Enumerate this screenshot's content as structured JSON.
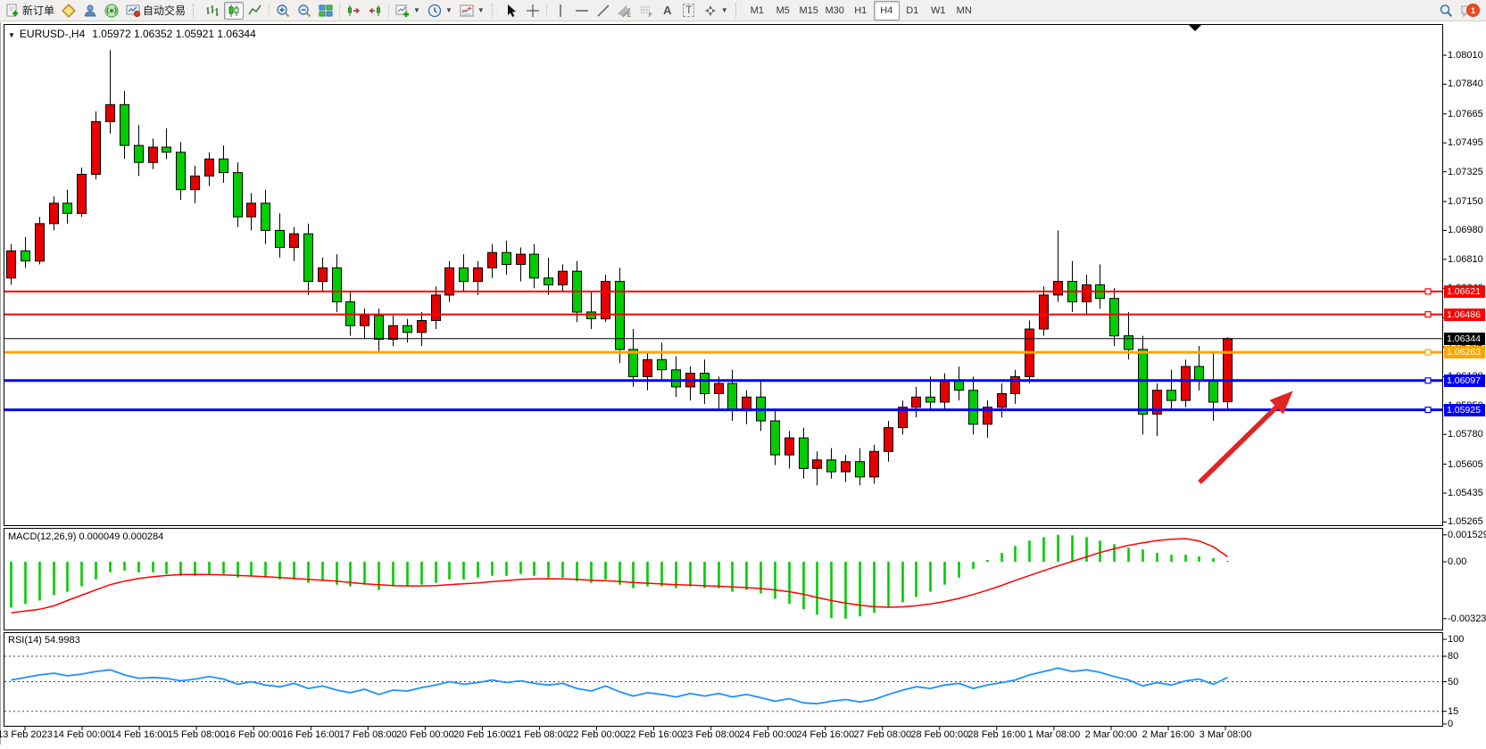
{
  "toolbar": {
    "new_order": {
      "label": "新订单"
    },
    "autotrading": {
      "label": "自动交易"
    },
    "timeframe_labels": [
      "M1",
      "M5",
      "M15",
      "M30",
      "H1",
      "H4",
      "D1",
      "W1",
      "MN"
    ],
    "active_timeframe": "H4",
    "notification_badge": "1"
  },
  "chart": {
    "symbol_title": "EURUSD-,H4",
    "ohlc_text": "1.05972 1.06352 1.05921 1.06344",
    "price_ticks": [
      "1.08010",
      "1.07840",
      "1.07665",
      "1.07495",
      "1.07325",
      "1.07150",
      "1.06980",
      "1.06810",
      "1.06640",
      "1.06465",
      "1.06295",
      "1.06120",
      "1.05950",
      "1.05780",
      "1.05605",
      "1.05435",
      "1.05265"
    ],
    "lines": [
      {
        "label": "1.06621",
        "value": 1.06621,
        "color": "#FF0000"
      },
      {
        "label": "1.06486",
        "value": 1.06486,
        "color": "#FF0000"
      },
      {
        "label": "1.06344",
        "value": 1.06344,
        "color": "#000000"
      },
      {
        "label": "1.06263",
        "value": 1.06263,
        "color": "#FFA500"
      },
      {
        "label": "1.06097",
        "value": 1.06097,
        "color": "#0000FF"
      },
      {
        "label": "1.05925",
        "value": 1.05925,
        "color": "#0000FF"
      }
    ],
    "time_labels": [
      "13 Feb 2023",
      "14 Feb 00:00",
      "14 Feb 16:00",
      "15 Feb 08:00",
      "16 Feb 00:00",
      "16 Feb 16:00",
      "17 Feb 08:00",
      "20 Feb 00:00",
      "20 Feb 16:00",
      "21 Feb 08:00",
      "22 Feb 00:00",
      "22 Feb 16:00",
      "23 Feb 08:00",
      "24 Feb 00:00",
      "24 Feb 16:00",
      "27 Feb 08:00",
      "28 Feb 00:00",
      "28 Feb 16:00",
      "1 Mar 08:00",
      "2 Mar 00:00",
      "2 Mar 16:00",
      "3 Mar 08:00"
    ]
  },
  "chart_data": {
    "type": "candlestick",
    "symbol": "EURUSD-",
    "timeframe": "H4",
    "bull_color": "#E60000",
    "bear_color": "#00CC00",
    "open": [
      1.067,
      1.0686,
      1.068,
      1.0702,
      1.0714,
      1.0708,
      1.0731,
      1.0762,
      1.0772,
      1.0748,
      1.0738,
      1.0747,
      1.0744,
      1.0722,
      1.073,
      1.074,
      1.0732,
      1.0706,
      1.0714,
      1.0698,
      1.0688,
      1.0696,
      1.0668,
      1.0676,
      1.0656,
      1.0642,
      1.0648,
      1.0634,
      1.0642,
      1.0638,
      1.0645,
      1.066,
      1.0676,
      1.0668,
      1.0676,
      1.0685,
      1.0678,
      1.0684,
      1.067,
      1.0666,
      1.0674,
      1.065,
      1.0646,
      1.0668,
      1.0628,
      1.0612,
      1.0622,
      1.0616,
      1.0606,
      1.0614,
      1.0602,
      1.0608,
      1.0592,
      1.06,
      1.0586,
      1.0566,
      1.0576,
      1.0558,
      1.0563,
      1.0556,
      1.0562,
      1.0553,
      1.0568,
      1.0582,
      1.0594,
      1.06,
      1.0597,
      1.061,
      1.0604,
      1.0584,
      1.0594,
      1.0602,
      1.0612,
      1.064,
      1.066,
      1.0668,
      1.0656,
      1.0666,
      1.0658,
      1.0636,
      1.0628,
      1.059,
      1.0604,
      1.0598,
      1.0618,
      1.061,
      1.05972
    ],
    "high": [
      1.069,
      1.0694,
      1.0706,
      1.0718,
      1.0722,
      1.0735,
      1.0768,
      1.0804,
      1.078,
      1.076,
      1.0752,
      1.0758,
      1.075,
      1.0736,
      1.0744,
      1.0748,
      1.0738,
      1.072,
      1.0722,
      1.0708,
      1.07,
      1.0702,
      1.0682,
      1.0684,
      1.0662,
      1.0652,
      1.0652,
      1.0648,
      1.0646,
      1.065,
      1.0665,
      1.068,
      1.0684,
      1.068,
      1.069,
      1.0692,
      1.0688,
      1.069,
      1.0682,
      1.0678,
      1.068,
      1.0662,
      1.0672,
      1.0676,
      1.064,
      1.0626,
      1.0632,
      1.0624,
      1.0618,
      1.0622,
      1.0612,
      1.0616,
      1.0604,
      1.061,
      1.0592,
      1.058,
      1.0582,
      1.0568,
      1.057,
      1.0566,
      1.057,
      1.0572,
      1.0586,
      1.0598,
      1.0606,
      1.0612,
      1.0614,
      1.0618,
      1.0612,
      1.0598,
      1.0608,
      1.0616,
      1.0645,
      1.0665,
      1.0698,
      1.068,
      1.0672,
      1.0678,
      1.0664,
      1.065,
      1.0636,
      1.0608,
      1.0616,
      1.0622,
      1.063,
      1.0626,
      1.06352
    ],
    "low": [
      1.0666,
      1.0676,
      1.0678,
      1.0698,
      1.0702,
      1.0706,
      1.0728,
      1.0755,
      1.074,
      1.073,
      1.0734,
      1.074,
      1.0716,
      1.0714,
      1.0724,
      1.0726,
      1.07,
      1.0698,
      1.069,
      1.0682,
      1.068,
      1.066,
      1.0662,
      1.065,
      1.0636,
      1.0634,
      1.0627,
      1.063,
      1.0632,
      1.063,
      1.064,
      1.0656,
      1.0662,
      1.066,
      1.067,
      1.0672,
      1.0668,
      1.0664,
      1.066,
      1.0662,
      1.0644,
      1.064,
      1.0644,
      1.062,
      1.0606,
      1.0604,
      1.061,
      1.06,
      1.0598,
      1.0596,
      1.0592,
      1.0586,
      1.0584,
      1.058,
      1.056,
      1.0558,
      1.0552,
      1.0548,
      1.0552,
      1.055,
      1.0548,
      1.0549,
      1.0562,
      1.0578,
      1.0588,
      1.0592,
      1.0592,
      1.0598,
      1.0578,
      1.0576,
      1.0588,
      1.0596,
      1.0608,
      1.0636,
      1.0656,
      1.065,
      1.0648,
      1.0652,
      1.063,
      1.0622,
      1.0578,
      1.0577,
      1.0592,
      1.0594,
      1.0604,
      1.0586,
      1.05921
    ],
    "close": [
      1.0686,
      1.068,
      1.0702,
      1.0714,
      1.0708,
      1.0731,
      1.0762,
      1.0772,
      1.0748,
      1.0738,
      1.0747,
      1.0744,
      1.0722,
      1.073,
      1.074,
      1.0732,
      1.0706,
      1.0714,
      1.0698,
      1.0688,
      1.0696,
      1.0668,
      1.0676,
      1.0656,
      1.0642,
      1.0648,
      1.0634,
      1.0642,
      1.0638,
      1.0645,
      1.066,
      1.0676,
      1.0668,
      1.0676,
      1.0685,
      1.0678,
      1.0684,
      1.067,
      1.0666,
      1.0674,
      1.065,
      1.0646,
      1.0668,
      1.0628,
      1.0612,
      1.0622,
      1.0616,
      1.0606,
      1.0614,
      1.0602,
      1.0608,
      1.0592,
      1.06,
      1.0586,
      1.0566,
      1.0576,
      1.0558,
      1.0563,
      1.0556,
      1.0562,
      1.0553,
      1.0568,
      1.0582,
      1.0594,
      1.06,
      1.0597,
      1.061,
      1.0604,
      1.0584,
      1.0594,
      1.0602,
      1.0612,
      1.064,
      1.066,
      1.0668,
      1.0656,
      1.0666,
      1.0658,
      1.0636,
      1.0628,
      1.059,
      1.0604,
      1.0598,
      1.0618,
      1.061,
      1.0597,
      1.06344
    ],
    "macd": {
      "label": "MACD(12,26,9) 0.000049 0.000284",
      "axis_labels": [
        "0.001529",
        "0.00",
        "-0.003232"
      ],
      "histogram_color": "#00CC00",
      "signal_color": "#FF0000",
      "histogram": [
        -0.0026,
        -0.0024,
        -0.0022,
        -0.0019,
        -0.0017,
        -0.0014,
        -0.001,
        -0.0006,
        -0.0005,
        -0.0006,
        -0.0006,
        -0.0007,
        -0.0008,
        -0.0008,
        -0.0007,
        -0.0007,
        -0.0009,
        -0.0008,
        -0.0009,
        -0.001,
        -0.001,
        -0.0012,
        -0.0011,
        -0.0013,
        -0.0014,
        -0.0013,
        -0.0016,
        -0.0014,
        -0.0014,
        -0.0013,
        -0.0012,
        -0.001,
        -0.001,
        -0.0009,
        -0.0008,
        -0.0008,
        -0.0007,
        -0.0008,
        -0.0009,
        -0.0009,
        -0.0011,
        -0.0012,
        -0.001,
        -0.0013,
        -0.0015,
        -0.0014,
        -0.0014,
        -0.0015,
        -0.0014,
        -0.0015,
        -0.0015,
        -0.0017,
        -0.0016,
        -0.0018,
        -0.0021,
        -0.0024,
        -0.0027,
        -0.003,
        -0.0032,
        -0.00323,
        -0.0031,
        -0.0029,
        -0.0026,
        -0.0023,
        -0.002,
        -0.0017,
        -0.0013,
        -0.0009,
        -0.0004,
        0.0001,
        0.0005,
        0.0009,
        0.0012,
        0.0014,
        0.00153,
        0.0015,
        0.0014,
        0.0012,
        0.001,
        0.0008,
        0.0007,
        0.0005,
        0.0004,
        0.0004,
        0.0003,
        0.0002,
        4.9e-05
      ],
      "signal": [
        -0.0029,
        -0.0028,
        -0.0027,
        -0.0025,
        -0.0022,
        -0.0019,
        -0.0016,
        -0.0013,
        -0.0011,
        -0.00095,
        -0.00085,
        -0.00078,
        -0.00073,
        -0.00072,
        -0.00073,
        -0.00075,
        -0.00078,
        -0.00081,
        -0.00085,
        -0.0009,
        -0.00095,
        -0.001,
        -0.00105,
        -0.0011,
        -0.00118,
        -0.00125,
        -0.0013,
        -0.00135,
        -0.00137,
        -0.00137,
        -0.00135,
        -0.0013,
        -0.00125,
        -0.0012,
        -0.00113,
        -0.00107,
        -0.001,
        -0.00097,
        -0.00096,
        -0.00097,
        -0.001,
        -0.00105,
        -0.00108,
        -0.00112,
        -0.00118,
        -0.00122,
        -0.00126,
        -0.0013,
        -0.00133,
        -0.00136,
        -0.00139,
        -0.00143,
        -0.00147,
        -0.00152,
        -0.0016,
        -0.0017,
        -0.00185,
        -0.00203,
        -0.0022,
        -0.00235,
        -0.00247,
        -0.00255,
        -0.00258,
        -0.00256,
        -0.0025,
        -0.0024,
        -0.00226,
        -0.00208,
        -0.00186,
        -0.00161,
        -0.00134,
        -0.00106,
        -0.00078,
        -0.0005,
        -0.00024,
        2e-05,
        0.00028,
        0.00052,
        0.00074,
        0.00093,
        0.00108,
        0.0012,
        0.00128,
        0.00131,
        0.00118,
        0.00085,
        0.000284
      ]
    },
    "rsi": {
      "label": "RSI(14) 54.9983",
      "axis_labels": [
        "100",
        "80",
        "50",
        "15",
        "0"
      ],
      "levels": [
        80,
        50,
        15
      ],
      "line_color": "#1E90FF",
      "values": [
        52,
        55,
        58,
        60,
        57,
        59,
        62,
        64,
        58,
        54,
        55,
        54,
        51,
        53,
        56,
        53,
        47,
        50,
        46,
        44,
        48,
        42,
        45,
        40,
        37,
        41,
        35,
        40,
        39,
        43,
        46,
        50,
        47,
        49,
        52,
        49,
        51,
        48,
        46,
        48,
        42,
        39,
        45,
        38,
        33,
        37,
        35,
        32,
        36,
        33,
        36,
        32,
        35,
        31,
        27,
        30,
        25,
        24,
        27,
        29,
        26,
        29,
        35,
        40,
        44,
        42,
        46,
        48,
        42,
        46,
        49,
        52,
        58,
        62,
        66,
        62,
        64,
        61,
        56,
        52,
        45,
        49,
        46,
        51,
        53,
        47,
        55
      ]
    }
  },
  "annotation_arrow": {
    "color": "#E02424"
  }
}
